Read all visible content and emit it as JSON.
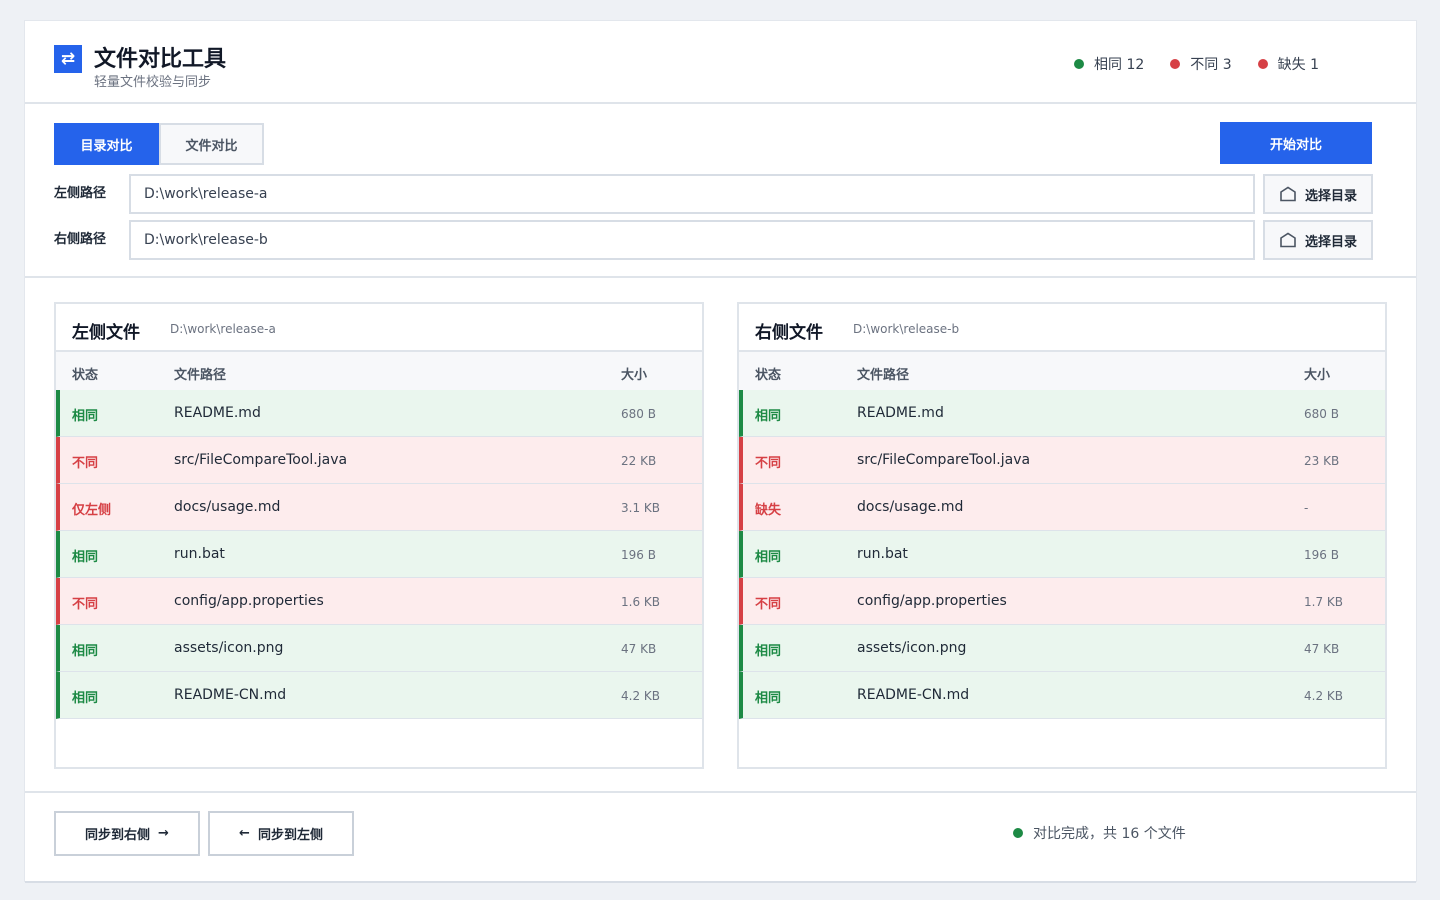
{
  "app": {
    "title": "文件对比工具",
    "subtitle": "轻量文件校验与同步",
    "logo_icon": "swap-arrows-icon"
  },
  "legend": [
    {
      "label": "相同 12",
      "color": "#1d8a45"
    },
    {
      "label": "不同 3",
      "color": "#d64045"
    },
    {
      "label": "缺失 1",
      "color": "#d64045"
    }
  ],
  "mode_tabs": [
    {
      "label": "目录对比",
      "active": true
    },
    {
      "label": "文件对比",
      "active": false
    }
  ],
  "start_button": "开始对比",
  "paths": {
    "left_label": "左侧路径",
    "left_value": "D:\\work\\release-a",
    "right_label": "右侧路径",
    "right_value": "D:\\work\\release-b",
    "choose_label": "选择目录",
    "choose_icon": "folder-icon"
  },
  "columns": {
    "status": "状态",
    "path": "文件路径",
    "size": "大小"
  },
  "left_panel": {
    "title": "左侧文件",
    "path": "D:\\work\\release-a",
    "rows": [
      {
        "status": "相同",
        "kind": "same",
        "path": "README.md",
        "size": "680 B"
      },
      {
        "status": "不同",
        "kind": "diff",
        "path": "src/FileCompareTool.java",
        "size": "22 KB"
      },
      {
        "status": "仅左侧",
        "kind": "diff",
        "path": "docs/usage.md",
        "size": "3.1 KB"
      },
      {
        "status": "相同",
        "kind": "same",
        "path": "run.bat",
        "size": "196 B"
      },
      {
        "status": "不同",
        "kind": "diff",
        "path": "config/app.properties",
        "size": "1.6 KB"
      },
      {
        "status": "相同",
        "kind": "same",
        "path": "assets/icon.png",
        "size": "47 KB"
      },
      {
        "status": "相同",
        "kind": "same",
        "path": "README-CN.md",
        "size": "4.2 KB"
      }
    ]
  },
  "right_panel": {
    "title": "右侧文件",
    "path": "D:\\work\\release-b",
    "rows": [
      {
        "status": "相同",
        "kind": "same",
        "path": "README.md",
        "size": "680 B"
      },
      {
        "status": "不同",
        "kind": "diff",
        "path": "src/FileCompareTool.java",
        "size": "23 KB"
      },
      {
        "status": "缺失",
        "kind": "diff",
        "path": "docs/usage.md",
        "size": "-"
      },
      {
        "status": "相同",
        "kind": "same",
        "path": "run.bat",
        "size": "196 B"
      },
      {
        "status": "不同",
        "kind": "diff",
        "path": "config/app.properties",
        "size": "1.7 KB"
      },
      {
        "status": "相同",
        "kind": "same",
        "path": "assets/icon.png",
        "size": "47 KB"
      },
      {
        "status": "相同",
        "kind": "same",
        "path": "README-CN.md",
        "size": "4.2 KB"
      }
    ]
  },
  "footer": {
    "sync_right": "同步到右侧",
    "sync_right_arrow": "→",
    "sync_left": "同步到左侧",
    "sync_left_arrow": "←",
    "status_text": "对比完成，共 16 个文件",
    "status_color": "#1d8a45"
  }
}
